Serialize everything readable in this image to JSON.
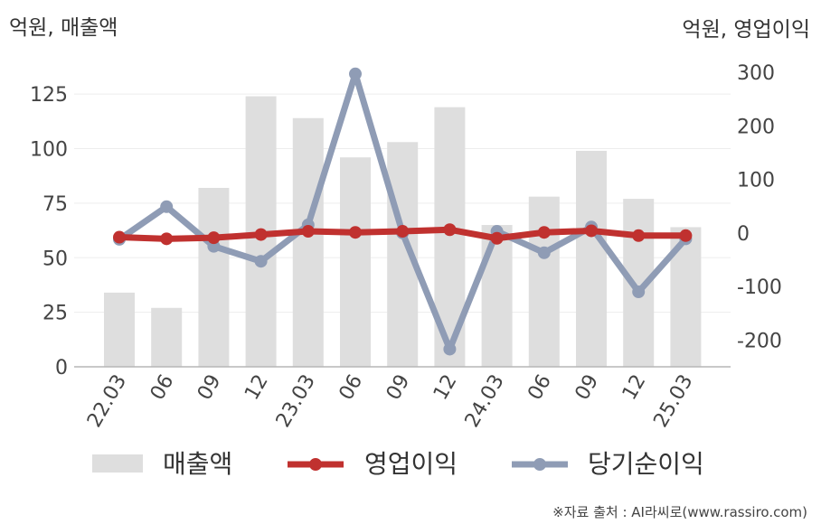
{
  "chart_data": {
    "type": "bar",
    "categories": [
      "22.03",
      "06",
      "09",
      "12",
      "23.03",
      "06",
      "09",
      "12",
      "24.03",
      "06",
      "09",
      "12",
      "25.03"
    ],
    "left_unit": "억원, 매출액",
    "right_unit": "억원, 영업이익",
    "left_axis": {
      "ylim": [
        0,
        135
      ],
      "ticks": [
        0,
        25,
        50,
        75,
        100,
        125
      ]
    },
    "right_axis": {
      "ylim": [
        -250,
        300
      ],
      "ticks": [
        -200,
        -100,
        0,
        100,
        200,
        300
      ]
    },
    "grid": true,
    "legend_position": "bottom",
    "series": [
      {
        "name": "매출액",
        "kind": "bar",
        "axis": "left",
        "color": "#dedede",
        "values": [
          34,
          27,
          82,
          124,
          114,
          96,
          103,
          119,
          65,
          78,
          99,
          77,
          64
        ]
      },
      {
        "name": "영업이익",
        "kind": "line",
        "axis": "right",
        "color": "#c0312f",
        "values": [
          -8,
          -11,
          -9,
          -3,
          3,
          1,
          3,
          6,
          -10,
          1,
          4,
          -5,
          -5
        ]
      },
      {
        "name": "당기순이익",
        "kind": "line",
        "axis": "right",
        "color": "#8f9cb5",
        "values": [
          -12,
          49,
          -25,
          -53,
          15,
          297,
          0,
          -217,
          3,
          -37,
          11,
          -110,
          -11
        ]
      }
    ]
  },
  "source": "※자료 출처 : AI라씨로(www.rassiro.com)"
}
